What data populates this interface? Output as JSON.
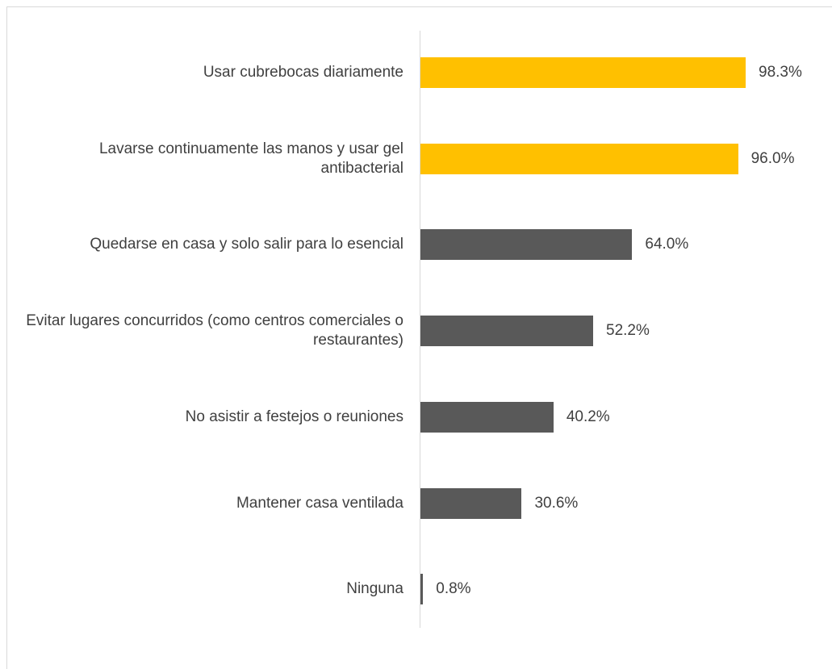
{
  "chart_data": {
    "type": "barh",
    "categories": [
      "Usar cubrebocas diariamente",
      "Lavarse continuamente las manos y usar gel antibacterial",
      "Quedarse en casa y solo salir para lo esencial",
      "Evitar lugares concurridos (como centros comerciales o restaurantes)",
      "No asistir a festejos o reuniones",
      "Mantener casa ventilada",
      "Ninguna"
    ],
    "values": [
      98.3,
      96.0,
      64.0,
      52.2,
      40.2,
      30.6,
      0.8
    ],
    "value_labels": [
      "98.3%",
      "96.0%",
      "64.0%",
      "52.2%",
      "40.2%",
      "30.6%",
      "0.8%"
    ],
    "colors": [
      "#ffc000",
      "#ffc000",
      "#595959",
      "#595959",
      "#595959",
      "#595959",
      "#595959"
    ],
    "xlim": [
      0,
      100
    ]
  }
}
